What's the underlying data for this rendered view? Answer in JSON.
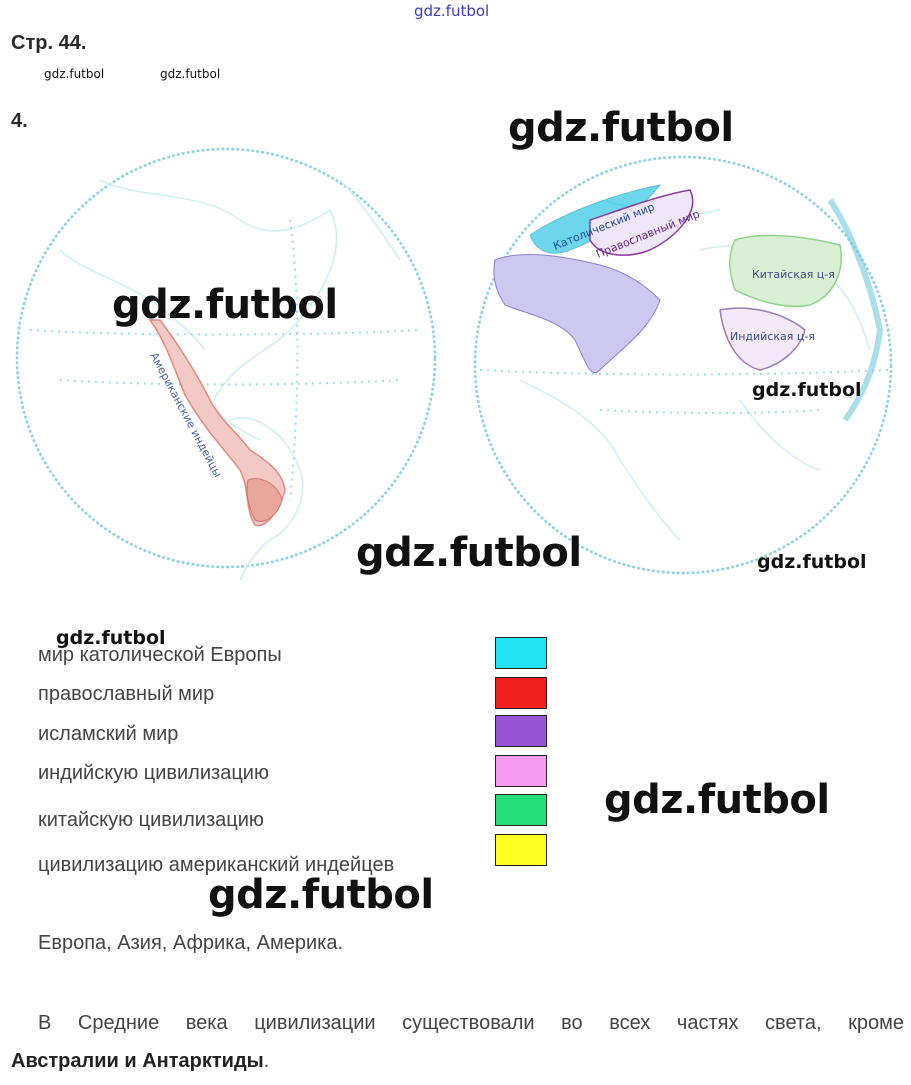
{
  "header": {
    "watermark_top": "gdz.futbol",
    "page_number": "Стр. 44.",
    "small_watermarks": [
      "gdz.futbol",
      "gdz.futbol"
    ],
    "task_number": "4."
  },
  "map": {
    "labels": {
      "catholic": "Католический мир",
      "orthodox": "Православный мир",
      "chinese": "Китайская ц-я",
      "indian": "Индийская ц-я",
      "american": "Американские индейцы"
    },
    "colors": {
      "outline": "#7fd0e0",
      "catholic": "#2fc6e6",
      "islamic": "#8b7fd0",
      "chinese": "#8fd48a",
      "american": "#e08a80",
      "indian": "#c7a0e0"
    }
  },
  "watermarks": {
    "w1": "gdz.futbol",
    "w2": "gdz.futbol",
    "w3": "gdz.futbol",
    "w4": "gdz.futbol",
    "w5": "gdz.futbol",
    "w6": "gdz.futbol",
    "w7": "gdz.futbol",
    "w8": "gdz.futbol"
  },
  "legend": {
    "items": [
      {
        "label": "мир католической Европы",
        "color": "#22e3f1"
      },
      {
        "label": "православный мир",
        "color": "#f21f1f"
      },
      {
        "label": "исламский мир",
        "color": "#9a55d6"
      },
      {
        "label": "индийскую цивилизацию",
        "color": "#f59af0"
      },
      {
        "label": "китайскую цивилизацию",
        "color": "#25e07a"
      },
      {
        "label": "цивилизацию американский индейцев",
        "color": "#ffff22"
      }
    ]
  },
  "answers": {
    "parts": "Европа, Азия, Африка, Америка.",
    "conclusion_start": "В Средние века цивилизации существовали во всех частях света, кроме",
    "conclusion_bold": "Австралии и Антарктиды",
    "conclusion_end": "."
  }
}
